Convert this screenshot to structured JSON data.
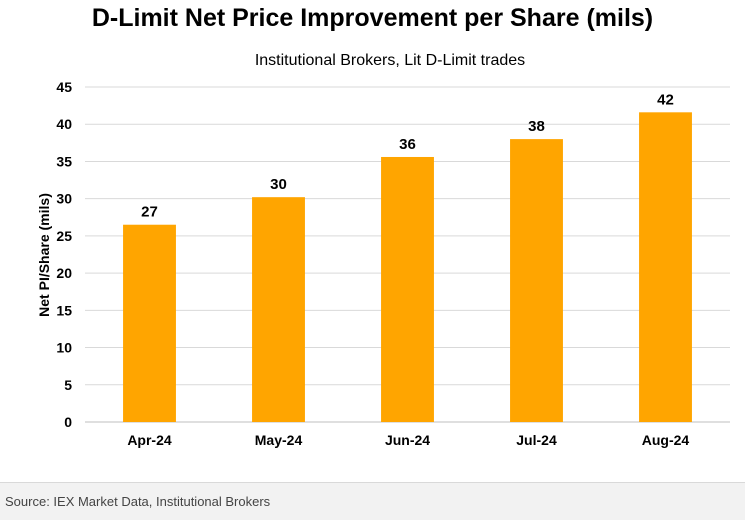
{
  "chart_data": {
    "type": "bar",
    "title": "D-Limit Net Price Improvement per Share (mils)",
    "subtitle": "Institutional  Brokers, Lit D-Limit trades",
    "ylabel": "Net PI/Share (mils)",
    "xlabel": "",
    "categories": [
      "Apr-24",
      "May-24",
      "Jun-24",
      "Jul-24",
      "Aug-24"
    ],
    "values": [
      26.5,
      30.2,
      35.6,
      38.0,
      41.6
    ],
    "data_labels": [
      "27",
      "30",
      "36",
      "38",
      "42"
    ],
    "ylim": [
      0,
      45
    ],
    "yticks": [
      0,
      5,
      10,
      15,
      20,
      25,
      30,
      35,
      40,
      45
    ],
    "grid": true,
    "legend": "none",
    "bar_color": "#FFA500"
  },
  "footer": {
    "source": "Source: IEX Market Data, Institutional Brokers"
  }
}
